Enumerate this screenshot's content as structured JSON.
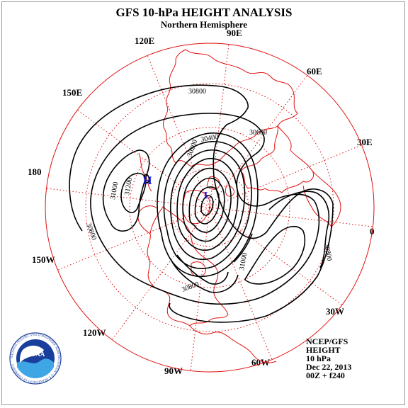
{
  "header": {
    "title": "GFS 10-hPa HEIGHT ANALYSIS",
    "subtitle": "Northern Hemisphere"
  },
  "longitude_labels": [
    "90E",
    "60E",
    "30E",
    "0",
    "30W",
    "60W",
    "90W",
    "120W",
    "150W",
    "180",
    "150E",
    "120E"
  ],
  "contour_labels": [
    "30800",
    "30600",
    "30400",
    "31200",
    "31000",
    "30800",
    "30200",
    "30800",
    "31000",
    "30800"
  ],
  "pressure_centers": {
    "high": "H",
    "low": "L"
  },
  "info_block": {
    "line1": "NCEP/GFS",
    "line2": "HEIGHT",
    "line3": "10 hPa",
    "line4": "Dec 22, 2013",
    "line5": "00Z + f240"
  },
  "logo": {
    "text": "NOAA",
    "ring_text": "NATIONAL OCEANIC AND ATMOSPHERIC ADMINISTRATION · U.S. DEPARTMENT OF COMMERCE"
  },
  "colors": {
    "graticule": "#e01010",
    "coastline": "#e01010",
    "contour": "#000000",
    "center_label": "#1010dd",
    "logo_blue": "#1a3e9c"
  }
}
